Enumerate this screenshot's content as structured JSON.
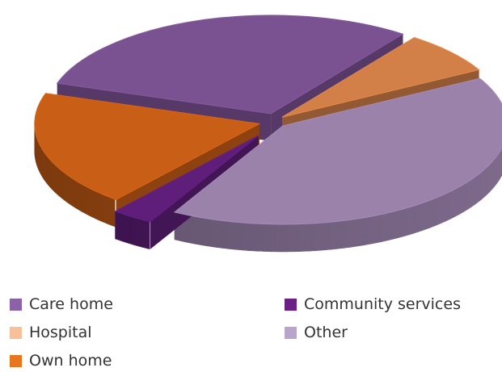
{
  "chart_data": {
    "type": "pie",
    "style": "3d-exploded",
    "title": "",
    "categories": [
      "Care home",
      "Hospital",
      "Other",
      "Community services",
      "Own home"
    ],
    "values": [
      30,
      7,
      41,
      3,
      19
    ],
    "colors": [
      "#7b5291",
      "#d27f48",
      "#9a82ab",
      "#5e1e79",
      "#c95e16"
    ],
    "legend_placement": "bottom",
    "legend": [
      {
        "label": "Care home",
        "color": "#8c62a6"
      },
      {
        "label": "Community services",
        "color": "#6a2085"
      },
      {
        "label": "Hospital",
        "color": "#f5c09a"
      },
      {
        "label": "Other",
        "color": "#b9a4cc"
      },
      {
        "label": "Own home",
        "color": "#e8761f"
      }
    ]
  }
}
